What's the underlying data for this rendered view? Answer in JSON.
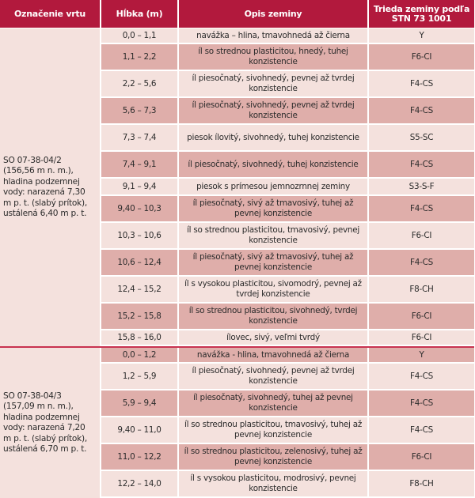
{
  "header": {
    "col1": "Označenie vrtu",
    "col2": "Hĺbka (m)",
    "col3": "Opis zeminy",
    "col4": "Trieda zeminy podľa STN 73 1001"
  },
  "colors": {
    "header_bg": "#b2193d",
    "row_light": "#f4e1dd",
    "row_dark": "#dfaeaa",
    "separator": "#c8314f"
  },
  "groups": [
    {
      "borehole": "SO 07-38-04/2\n(156,56 m n. m.),\nhladina podzemnej\nvody: narazená 7,30\nm p. t. (slabý prítok),\nustálená 6,40 m p. t.",
      "rows": [
        {
          "depth": "0,0 – 1,1",
          "desc": "navážka – hlina, tmavohnedá až čierna",
          "cls": "Y"
        },
        {
          "depth": "1,1 – 2,2",
          "desc": "íl so strednou plasticitou, hnedý, tuhej konzistencie",
          "cls": "F6-CI"
        },
        {
          "depth": "2,2 – 5,6",
          "desc": "íl piesočnatý, sivohnedý, pevnej až tvrdej konzistencie",
          "cls": "F4-CS"
        },
        {
          "depth": "5,6 – 7,3",
          "desc": "íl piesočnatý, sivohnedý, pevnej až tvrdej konzistencie",
          "cls": "F4-CS"
        },
        {
          "depth": "7,3 – 7,4",
          "desc": "piesok ílovitý, sivohnedý, tuhej konzistencie",
          "cls": "S5-SC"
        },
        {
          "depth": "7,4 – 9,1",
          "desc": "íl piesočnatý, sivohnedý, tuhej konzistencie",
          "cls": "F4-CS"
        },
        {
          "depth": "9,1 – 9,4",
          "desc": "piesok s prímesou jemnozrnnej zeminy",
          "cls": "S3-S-F"
        },
        {
          "depth": "9,40 – 10,3",
          "desc": "íl piesočnatý, sivý až tmavosivý, tuhej až pevnej konzistencie",
          "cls": "F4-CS"
        },
        {
          "depth": "10,3 – 10,6",
          "desc": "íl so strednou plasticitou, tmavosivý, pevnej konzistencie",
          "cls": "F6-CI"
        },
        {
          "depth": "10,6 – 12,4",
          "desc": "íl piesočnatý, sivý až tmavosivý, tuhej až pevnej konzistencie",
          "cls": "F4-CS"
        },
        {
          "depth": "12,4 – 15,2",
          "desc": "íl s vysokou plasticitou, sivomodrý, pevnej až tvrdej konzistencie",
          "cls": "F8-CH"
        },
        {
          "depth": "15,2 – 15,8",
          "desc": "íl so strednou plasticitou, sivohnedý, tvrdej konzistencie",
          "cls": "F6-CI"
        },
        {
          "depth": "15,8 – 16,0",
          "desc": "ílovec, sivý, veľmi tvrdý",
          "cls": "F6-CI"
        }
      ]
    },
    {
      "borehole": "SO 07-38-04/3\n(157,09 m n. m.),\nhladina podzemnej\nvody: narazená 7,20\nm p. t. (slabý prítok),\nustálená 6,70 m p. t.",
      "rows": [
        {
          "depth": "0,0 – 1,2",
          "desc": "navážka - hlina, tmavohnedá až čierna",
          "cls": "Y"
        },
        {
          "depth": "1,2 – 5,9",
          "desc": "íl piesočnatý, sivohnedý, pevnej až tvrdej konzistencie",
          "cls": "F4-CS"
        },
        {
          "depth": "5,9 – 9,4",
          "desc": "íl piesočnatý, sivohnedý, tuhej až pevnej konzistencie",
          "cls": "F4-CS"
        },
        {
          "depth": "9,40 – 11,0",
          "desc": "íl so strednou plasticitou, tmavosivý, tuhej až pevnej konzistencie",
          "cls": "F4-CS"
        },
        {
          "depth": "11,0 – 12,2",
          "desc": "íl so strednou plasticitou, zelenosivý, tuhej až pevnej konzistencie",
          "cls": "F6-CI"
        },
        {
          "depth": "12,2 – 14,0",
          "desc": "íl s vysokou plasticitou, modrosivý, pevnej konzistencie",
          "cls": "F8-CH"
        }
      ]
    }
  ]
}
